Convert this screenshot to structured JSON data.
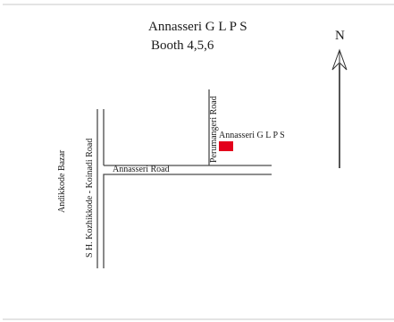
{
  "map": {
    "title": "Annasseri G L P S",
    "subtitle": "Booth  4,5,6",
    "north_label": "N",
    "school_label": "Annasseri G L P S",
    "school_marker_color": "#e3001b",
    "roads": {
      "annasseri_road": "Annasseri Road",
      "perumangeri_road": "Perumangeri Road",
      "sh_road": "S H. Kozhikkode - Koinadi Road",
      "bazaar": "Andikkode Bazar"
    }
  }
}
